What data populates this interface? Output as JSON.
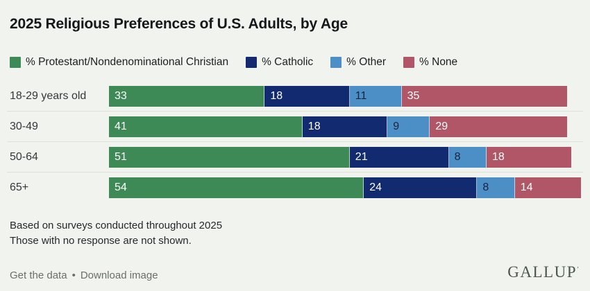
{
  "title": "2025 Religious Preferences of U.S. Adults, by Age",
  "colors": {
    "background": "#f0f3ee",
    "protestant_green": "#3e8a57",
    "catholic_navy": "#122a70",
    "other_blue": "#4b8fc6",
    "none_red": "#b05666",
    "row_separator": "#dde2d8",
    "text_dark": "#15181a",
    "footer_gray": "#697068"
  },
  "legend": [
    {
      "label": "% Protestant/Nondenominational Christian",
      "color": "#3e8a57"
    },
    {
      "label": "% Catholic",
      "color": "#122a70"
    },
    {
      "label": "% Other",
      "color": "#4b8fc6"
    },
    {
      "label": "% None",
      "color": "#b05666"
    }
  ],
  "chart_data": {
    "type": "bar",
    "orientation": "horizontal",
    "stacked": true,
    "categories": [
      "18-29 years old",
      "30-49",
      "50-64",
      "65+"
    ],
    "series": [
      {
        "name": "% Protestant/Nondenominational Christian",
        "color": "#3e8a57",
        "value_color": "#ffffff",
        "values": [
          33,
          41,
          51,
          54
        ]
      },
      {
        "name": "% Catholic",
        "color": "#122a70",
        "value_color": "#ffffff",
        "values": [
          18,
          18,
          21,
          24
        ]
      },
      {
        "name": "% Other",
        "color": "#4b8fc6",
        "value_color": "#182340",
        "values": [
          11,
          9,
          8,
          8
        ]
      },
      {
        "name": "% None",
        "color": "#b05666",
        "value_color": "#ffffff",
        "values": [
          35,
          29,
          18,
          14
        ]
      }
    ],
    "xlim": [
      0,
      100
    ],
    "value_labels": "inside-start",
    "grid": "row-separators-only",
    "legend_position": "top"
  },
  "footnotes": [
    "Based on surveys conducted throughout 2025",
    "Those with no response are not shown."
  ],
  "footer": {
    "links": [
      "Get the data",
      "Download image"
    ],
    "separator": "•",
    "brand": "GALLUP",
    "brand_mark": "’"
  }
}
